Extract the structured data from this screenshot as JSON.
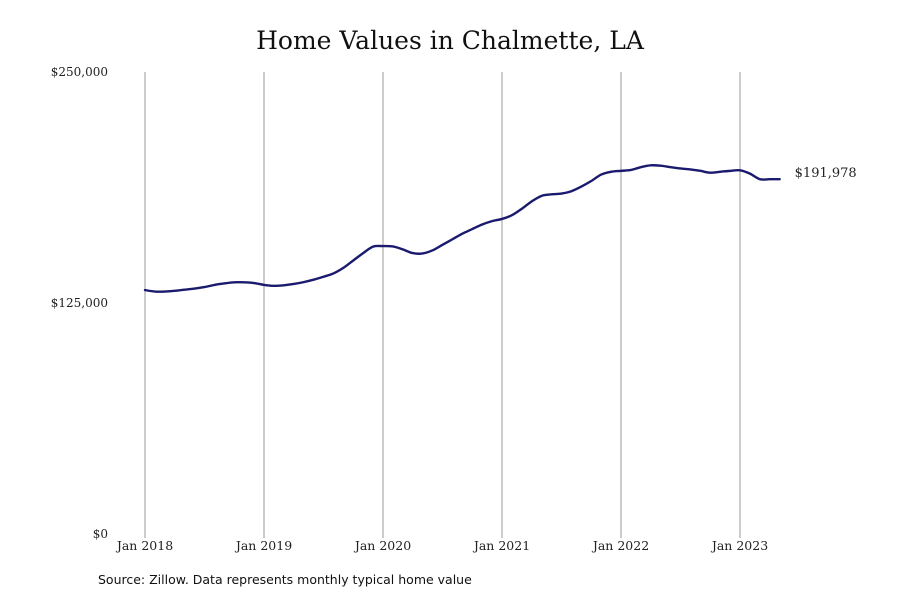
{
  "chart_data": {
    "type": "line",
    "title": "Home Values in Chalmette, LA",
    "source": "Source: Zillow. Data represents monthly typical home value",
    "ylim": [
      0,
      250000
    ],
    "y_ticks": [
      {
        "value": 0,
        "label": "$0"
      },
      {
        "value": 125000,
        "label": "$125,000"
      },
      {
        "value": 250000,
        "label": "$250,000"
      }
    ],
    "x_ticks": [
      {
        "date": "2018-01",
        "label": "Jan 2018"
      },
      {
        "date": "2019-01",
        "label": "Jan 2019"
      },
      {
        "date": "2020-01",
        "label": "Jan 2020"
      },
      {
        "date": "2021-01",
        "label": "Jan 2021"
      },
      {
        "date": "2022-01",
        "label": "Jan 2022"
      },
      {
        "date": "2023-01",
        "label": "Jan 2023"
      }
    ],
    "grid": "vertical",
    "line_color": "#1a1a6e",
    "end_label": "$191,978",
    "series": [
      {
        "x": [
          "2018-01",
          "2018-02",
          "2018-03",
          "2018-04",
          "2018-05",
          "2018-06",
          "2018-07",
          "2018-08",
          "2018-09",
          "2018-10",
          "2018-11",
          "2018-12",
          "2019-01",
          "2019-02",
          "2019-03",
          "2019-04",
          "2019-05",
          "2019-06",
          "2019-07",
          "2019-08",
          "2019-09",
          "2019-10",
          "2019-11",
          "2019-12",
          "2020-01",
          "2020-02",
          "2020-03",
          "2020-04",
          "2020-05",
          "2020-06",
          "2020-07",
          "2020-08",
          "2020-09",
          "2020-10",
          "2020-11",
          "2020-12",
          "2021-01",
          "2021-02",
          "2021-03",
          "2021-04",
          "2021-05",
          "2021-06",
          "2021-07",
          "2021-08",
          "2021-09",
          "2021-10",
          "2021-11",
          "2021-12",
          "2022-01",
          "2022-02",
          "2022-03",
          "2022-04",
          "2022-05",
          "2022-06",
          "2022-07",
          "2022-08",
          "2022-09",
          "2022-10",
          "2022-11",
          "2022-12",
          "2023-01",
          "2023-02",
          "2023-03",
          "2023-04",
          "2023-05"
        ],
        "values": [
          132000,
          131200,
          131200,
          131600,
          132200,
          132800,
          133600,
          134800,
          135600,
          136200,
          136200,
          135800,
          134800,
          134300,
          134600,
          135300,
          136300,
          137600,
          139200,
          141000,
          144000,
          148000,
          152000,
          155500,
          155800,
          155600,
          154000,
          152000,
          151800,
          153500,
          156500,
          159500,
          162500,
          165000,
          167500,
          169300,
          170500,
          172500,
          176000,
          180000,
          183000,
          183800,
          184200,
          185500,
          188000,
          191000,
          194500,
          196000,
          196500,
          197000,
          198500,
          199500,
          199300,
          198500,
          197800,
          197300,
          196500,
          195500,
          196000,
          196500,
          196800,
          195000,
          192000,
          191978,
          191978
        ]
      }
    ]
  }
}
